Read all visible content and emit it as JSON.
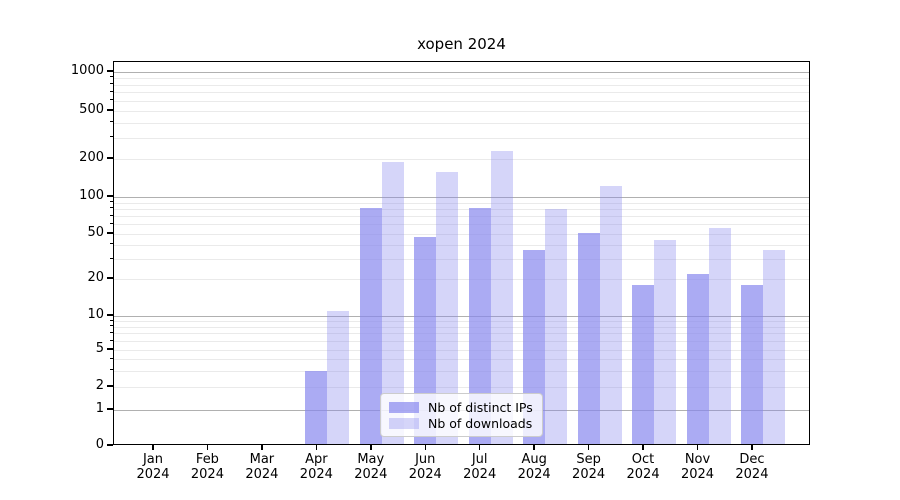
{
  "chart_data": {
    "type": "bar",
    "title": "xopen 2024",
    "x_months": [
      "Jan",
      "Feb",
      "Mar",
      "Apr",
      "May",
      "Jun",
      "Jul",
      "Aug",
      "Sep",
      "Oct",
      "Nov",
      "Dec"
    ],
    "x_year": "2024",
    "series": [
      {
        "name": "Nb of distinct IPs",
        "key": "ips",
        "values": [
          0,
          0,
          0,
          3,
          82,
          47,
          82,
          36,
          51,
          18,
          22,
          18
        ]
      },
      {
        "name": "Nb of downloads",
        "key": "downloads",
        "values": [
          0,
          0,
          0,
          11,
          190,
          158,
          235,
          80,
          122,
          44,
          56,
          36
        ]
      }
    ],
    "y_axis": {
      "scale": "symlog",
      "ticks": [
        0,
        1,
        2,
        5,
        10,
        20,
        50,
        100,
        200,
        500,
        1000
      ],
      "range": [
        0,
        1200
      ],
      "grid": "major-and-minor"
    },
    "legend": {
      "position": "lower center inside",
      "items": [
        "Nb of distinct IPs",
        "Nb of downloads"
      ]
    },
    "colors": {
      "ips": "rgba(136,136,238,0.7)",
      "downloads": "rgba(136,136,238,0.35)",
      "grid_major": "#b0b0b0",
      "grid_minor": "#eaeaea"
    }
  }
}
